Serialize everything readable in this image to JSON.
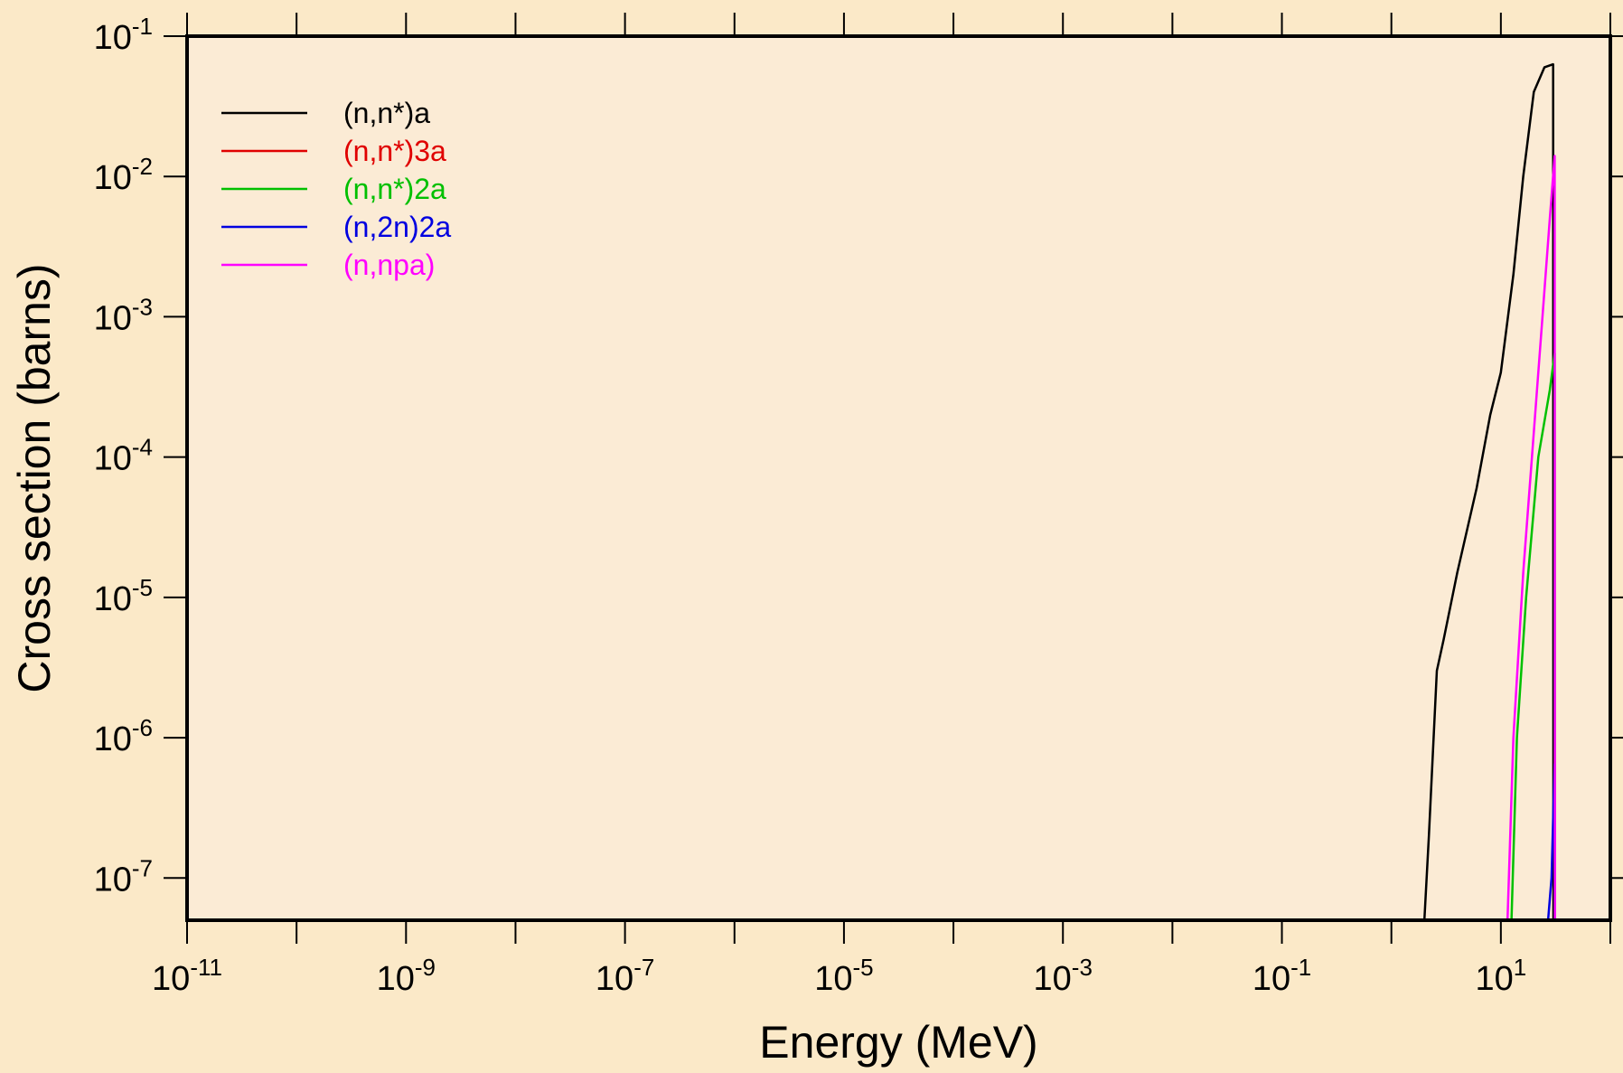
{
  "chart_data": {
    "type": "line",
    "title": "",
    "xlabel": "Energy (MeV)",
    "ylabel": "Cross section (barns)",
    "x_scale": "log",
    "y_scale": "log",
    "xlim": [
      1e-11,
      100.0
    ],
    "ylim": [
      5e-08,
      0.1
    ],
    "x_ticks": [
      {
        "base": "10",
        "exp": "-11"
      },
      {
        "base": "10",
        "exp": "-9"
      },
      {
        "base": "10",
        "exp": "-7"
      },
      {
        "base": "10",
        "exp": "-5"
      },
      {
        "base": "10",
        "exp": "-3"
      },
      {
        "base": "10",
        "exp": "-1"
      },
      {
        "base": "10",
        "exp": "1"
      }
    ],
    "y_ticks": [
      {
        "base": "10",
        "exp": "-1"
      },
      {
        "base": "10",
        "exp": "-2"
      },
      {
        "base": "10",
        "exp": "-3"
      },
      {
        "base": "10",
        "exp": "-4"
      },
      {
        "base": "10",
        "exp": "-5"
      },
      {
        "base": "10",
        "exp": "-6"
      },
      {
        "base": "10",
        "exp": "-7"
      }
    ],
    "grid": false,
    "legend_position": "top-left",
    "plot_background": "#fbebd5",
    "page_background": "#fbe9c8",
    "series": [
      {
        "name": "(n,n*)a",
        "color": "#000000",
        "points": [
          [
            1e-11,
            5e-08
          ],
          [
            2.0,
            5e-08
          ],
          [
            2.2,
            2e-07
          ],
          [
            2.6,
            3e-06
          ],
          [
            3.0,
            5e-06
          ],
          [
            4.0,
            1.5e-05
          ],
          [
            6.0,
            6e-05
          ],
          [
            8.0,
            0.0002
          ],
          [
            10.0,
            0.0004
          ],
          [
            13.0,
            0.002
          ],
          [
            16.0,
            0.01
          ],
          [
            20.0,
            0.04
          ],
          [
            25.0,
            0.06
          ],
          [
            30.0,
            0.063
          ],
          [
            30.2,
            5e-08
          ],
          [
            100.0,
            5e-08
          ]
        ]
      },
      {
        "name": "(n,n*)3a",
        "color": "#e00000",
        "points": [
          [
            1e-11,
            5e-08
          ],
          [
            100.0,
            5e-08
          ]
        ]
      },
      {
        "name": "(n,n*)2a",
        "color": "#00c000",
        "points": [
          [
            1e-11,
            5e-08
          ],
          [
            12.5,
            5e-08
          ],
          [
            14.0,
            1e-06
          ],
          [
            17.0,
            1e-05
          ],
          [
            22.0,
            0.0001
          ],
          [
            28.0,
            0.0003
          ],
          [
            31.0,
            0.00055
          ],
          [
            31.2,
            5e-08
          ],
          [
            100.0,
            5e-08
          ]
        ]
      },
      {
        "name": "(n,2n)2a",
        "color": "#0000e0",
        "points": [
          [
            1e-11,
            5e-08
          ],
          [
            27.0,
            5e-08
          ],
          [
            29.0,
            1e-07
          ],
          [
            31.0,
            6.5e-07
          ],
          [
            31.2,
            5e-08
          ],
          [
            100.0,
            5e-08
          ]
        ]
      },
      {
        "name": "(n,npa)",
        "color": "#ff00ff",
        "points": [
          [
            1e-11,
            5e-08
          ],
          [
            11.5,
            5e-08
          ],
          [
            13.0,
            1e-06
          ],
          [
            16.0,
            1.5e-05
          ],
          [
            20.0,
            0.00015
          ],
          [
            24.0,
            0.001
          ],
          [
            28.0,
            0.005
          ],
          [
            31.0,
            0.014
          ],
          [
            31.2,
            5e-08
          ],
          [
            100.0,
            5e-08
          ]
        ]
      }
    ]
  }
}
